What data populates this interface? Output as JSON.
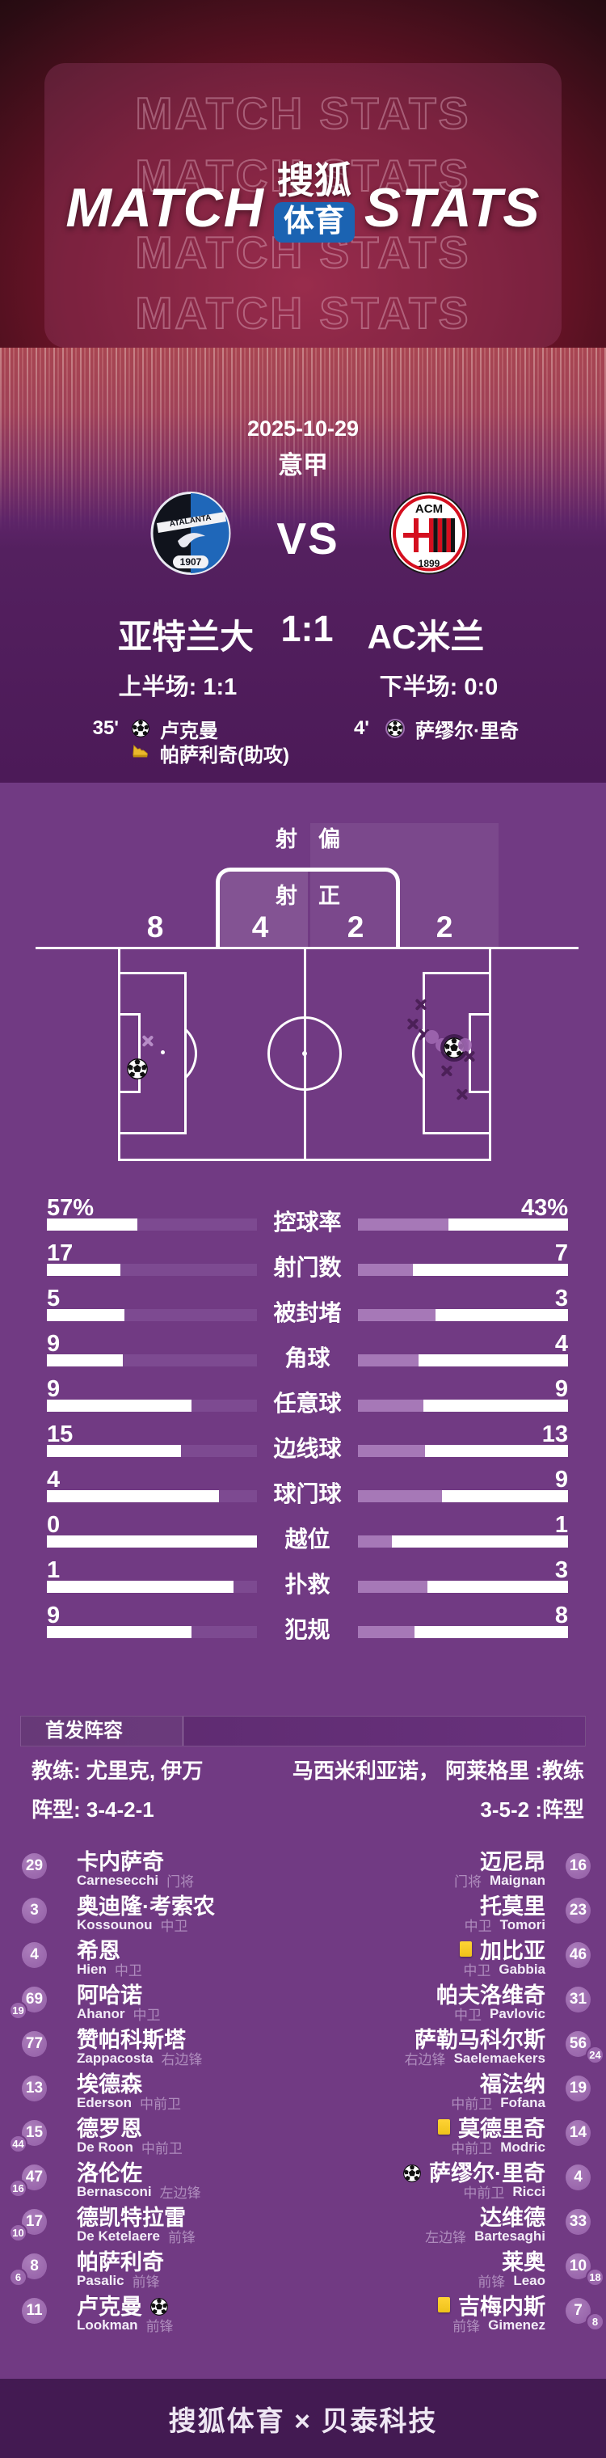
{
  "header": {
    "watermark": "MATCH STATS",
    "title_left": "MATCH",
    "title_right": "STATS",
    "logo_top": "搜狐",
    "logo_bottom": "体育"
  },
  "match": {
    "date": "2025-10-29",
    "league": "意甲",
    "vs_label": "VS",
    "home_name": "亚特兰大",
    "away_name": "AC米兰",
    "score": "1:1",
    "first_half": "上半场: 1:1",
    "second_half": "下半场: 0:0",
    "home_crest": {
      "title": "ATALANTA",
      "year": "1907"
    },
    "away_crest": {
      "title": "ACM",
      "year": "1899"
    },
    "home_events": [
      {
        "minute": "35'",
        "icon": "soccer-ball",
        "name": "卢克曼"
      },
      {
        "minute": "",
        "icon": "gold-boot",
        "name": "帕萨利奇(助攻)"
      }
    ],
    "away_events": [
      {
        "minute": "4'",
        "icon": "soccer-ball-ringed",
        "name": "萨缪尔·里奇"
      }
    ]
  },
  "chart_data": [
    {
      "type": "bar",
      "categories": [
        "控球率",
        "射门数",
        "被封堵",
        "角球",
        "任意球",
        "边线球",
        "球门球",
        "越位",
        "扑救",
        "犯规"
      ],
      "series": [
        {
          "name": "亚特兰大",
          "values": [
            57,
            17,
            5,
            9,
            9,
            15,
            4,
            0,
            1,
            9
          ]
        },
        {
          "name": "AC米兰",
          "values": [
            43,
            7,
            3,
            4,
            9,
            13,
            9,
            1,
            3,
            8
          ]
        }
      ],
      "rows": [
        {
          "label": "控球率",
          "left": "57%",
          "right": "43%",
          "left_fill": 57,
          "right_fill": 43
        },
        {
          "label": "射门数",
          "left": "17",
          "right": "7",
          "left_fill": 65,
          "right_fill": 26
        },
        {
          "label": "被封堵",
          "left": "5",
          "right": "3",
          "left_fill": 63,
          "right_fill": 37
        },
        {
          "label": "角球",
          "left": "9",
          "right": "4",
          "left_fill": 64,
          "right_fill": 29
        },
        {
          "label": "任意球",
          "left": "9",
          "right": "9",
          "left_fill": 31,
          "right_fill": 31
        },
        {
          "label": "边线球",
          "left": "15",
          "right": "13",
          "left_fill": 36,
          "right_fill": 32
        },
        {
          "label": "球门球",
          "left": "4",
          "right": "9",
          "left_fill": 18,
          "right_fill": 40
        },
        {
          "label": "越位",
          "left": "0",
          "right": "1",
          "left_fill": 0,
          "right_fill": 16
        },
        {
          "label": "扑救",
          "left": "1",
          "right": "3",
          "left_fill": 11,
          "right_fill": 33
        },
        {
          "label": "犯规",
          "left": "9",
          "right": "8",
          "left_fill": 31,
          "right_fill": 27
        }
      ],
      "legend_position": "none",
      "grid": false
    },
    {
      "type": "scatter",
      "name": "shot_map",
      "off_target_label": "射偏",
      "on_target_label": "射正",
      "home": {
        "on": "4",
        "off": "8"
      },
      "away": {
        "on": "2",
        "off": "2"
      },
      "markers": [
        {
          "team": "home",
          "kind": "miss",
          "x": 0.078,
          "y": 0.44
        },
        {
          "team": "home",
          "kind": "goal",
          "x": 0.052,
          "y": 0.57
        },
        {
          "team": "away",
          "kind": "miss",
          "x": 0.81,
          "y": 0.27
        },
        {
          "team": "away",
          "kind": "miss",
          "x": 0.79,
          "y": 0.36
        },
        {
          "team": "away",
          "kind": "miss",
          "x": 0.82,
          "y": 0.41
        },
        {
          "team": "away",
          "kind": "saved",
          "x": 0.84,
          "y": 0.42
        },
        {
          "team": "away",
          "kind": "saved",
          "x": 0.87,
          "y": 0.46
        },
        {
          "team": "away",
          "kind": "goal",
          "x": 0.9,
          "y": 0.47
        },
        {
          "team": "away",
          "kind": "saved",
          "x": 0.93,
          "y": 0.46
        },
        {
          "team": "away",
          "kind": "miss",
          "x": 0.94,
          "y": 0.51
        },
        {
          "team": "away",
          "kind": "miss",
          "x": 0.88,
          "y": 0.58
        },
        {
          "team": "away",
          "kind": "miss",
          "x": 0.92,
          "y": 0.69
        }
      ]
    }
  ],
  "lineup": {
    "section_title": "首发阵容",
    "home_coach": "教练: 尤里克, 伊万",
    "away_coach": "马西米利亚诺， 阿莱格里 :教练",
    "home_formation": "阵型: 3-4-2-1",
    "away_formation": "3-5-2 :阵型",
    "home_players": [
      {
        "num": "29",
        "name": "卡内萨奇",
        "latin": "Carnesecchi",
        "pos": "门将"
      },
      {
        "num": "3",
        "name": "奥迪隆·考索农",
        "latin": "Kossounou",
        "pos": "中卫"
      },
      {
        "num": "4",
        "name": "希恩",
        "latin": "Hien",
        "pos": "中卫"
      },
      {
        "num": "69",
        "name": "阿哈诺",
        "latin": "Ahanor",
        "pos": "中卫",
        "sub_num": "19"
      },
      {
        "num": "77",
        "name": "赞帕科斯塔",
        "latin": "Zappacosta",
        "pos": "右边锋"
      },
      {
        "num": "13",
        "name": "埃德森",
        "latin": "Ederson",
        "pos": "中前卫"
      },
      {
        "num": "15",
        "name": "德罗恩",
        "latin": "De Roon",
        "pos": "中前卫",
        "sub_num": "44"
      },
      {
        "num": "47",
        "name": "洛伦佐",
        "latin": "Bernasconi",
        "pos": "左边锋",
        "sub_num": "16"
      },
      {
        "num": "17",
        "name": "德凯特拉雷",
        "latin": "De Ketelaere",
        "pos": "前锋",
        "sub_num": "10"
      },
      {
        "num": "8",
        "name": "帕萨利奇",
        "latin": "Pasalic",
        "pos": "前锋",
        "sub_num": "6"
      },
      {
        "num": "11",
        "name": "卢克曼",
        "latin": "Lookman",
        "pos": "前锋",
        "icons": [
          "soccer-ball"
        ]
      }
    ],
    "away_players": [
      {
        "num": "16",
        "name": "迈尼昂",
        "latin": "Maignan",
        "pos": "门将"
      },
      {
        "num": "23",
        "name": "托莫里",
        "latin": "Tomori",
        "pos": "中卫"
      },
      {
        "num": "46",
        "name": "加比亚",
        "latin": "Gabbia",
        "pos": "中卫",
        "icons": [
          "yellow-card"
        ]
      },
      {
        "num": "31",
        "name": "帕夫洛维奇",
        "latin": "Pavlovic",
        "pos": "中卫"
      },
      {
        "num": "56",
        "name": "萨勒马科尔斯",
        "latin": "Saelemaekers",
        "pos": "右边锋",
        "sub_num": "24"
      },
      {
        "num": "19",
        "name": "福法纳",
        "latin": "Fofana",
        "pos": "中前卫"
      },
      {
        "num": "14",
        "name": "莫德里奇",
        "latin": "Modric",
        "pos": "中前卫",
        "icons": [
          "yellow-card"
        ]
      },
      {
        "num": "4",
        "name": "萨缪尔·里奇",
        "latin": "Ricci",
        "pos": "中前卫",
        "icons": [
          "soccer-ball"
        ]
      },
      {
        "num": "33",
        "name": "达维德",
        "latin": "Bartesaghi",
        "pos": "左边锋"
      },
      {
        "num": "10",
        "name": "莱奥",
        "latin": "Leao",
        "pos": "前锋",
        "sub_num": "18"
      },
      {
        "num": "7",
        "name": "吉梅内斯",
        "latin": "Gimenez",
        "pos": "前锋",
        "icons": [
          "yellow-card"
        ],
        "sub_num": "8"
      }
    ]
  },
  "footer": {
    "text": "搜狐体育 × 贝泰科技"
  }
}
